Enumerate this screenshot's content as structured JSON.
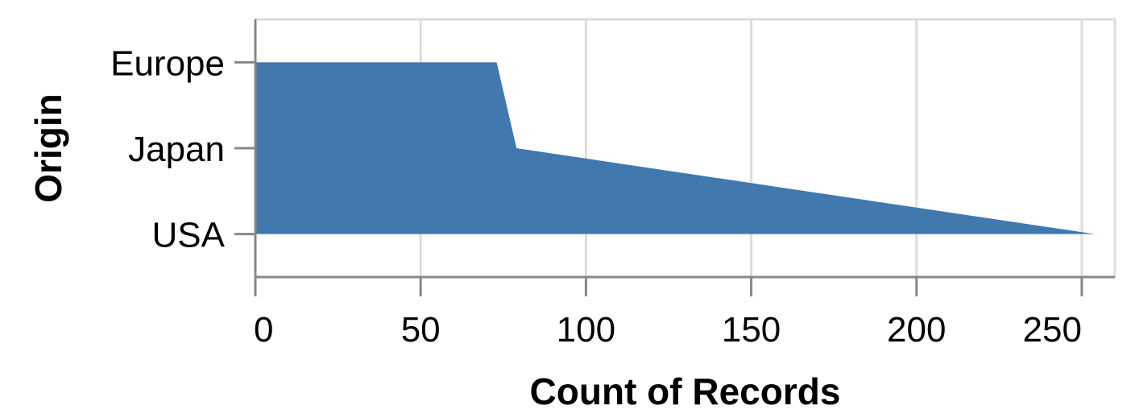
{
  "chart_data": {
    "type": "area",
    "orientation": "horizontal",
    "xlabel": "Count of Records",
    "ylabel": "Origin",
    "categories": [
      "Europe",
      "Japan",
      "USA"
    ],
    "values": [
      73,
      79,
      254
    ],
    "xlim": [
      0,
      260
    ],
    "xticks": [
      0,
      50,
      100,
      150,
      200,
      250
    ],
    "grid": true,
    "color": "#4178ae"
  }
}
